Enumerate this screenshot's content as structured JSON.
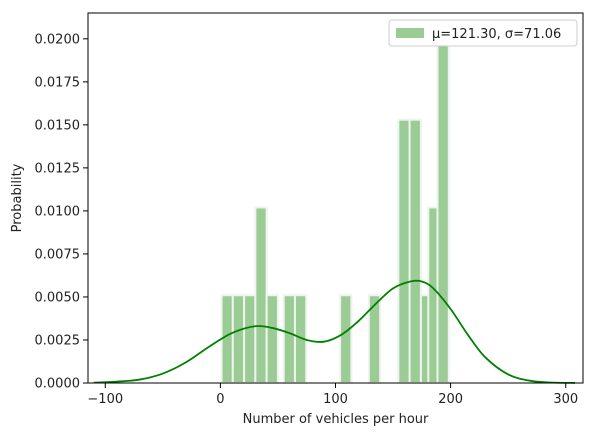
{
  "chart_data": {
    "type": "bar",
    "subtype": "histogram-with-kde",
    "title": "",
    "xlabel": "Number of vehicles per hour",
    "ylabel": "Probability",
    "xlim": [
      -115,
      315
    ],
    "ylim": [
      0,
      0.0215
    ],
    "x_ticks": [
      -100,
      0,
      100,
      200,
      300
    ],
    "y_ticks": [
      0.0,
      0.0025,
      0.005,
      0.0075,
      0.01,
      0.0125,
      0.015,
      0.0175,
      0.02
    ],
    "x_tick_labels": [
      "−100",
      "0",
      "100",
      "200",
      "300"
    ],
    "y_tick_labels": [
      "0.0000",
      "0.0025",
      "0.0050",
      "0.0075",
      "0.0100",
      "0.0125",
      "0.0150",
      "0.0175",
      "0.0200"
    ],
    "bin_width": 9.8,
    "bins": [
      {
        "x": 1.0,
        "value": 0.0051
      },
      {
        "x": 10.8,
        "value": 0.0051
      },
      {
        "x": 20.6,
        "value": 0.0051
      },
      {
        "x": 30.4,
        "value": 0.0102
      },
      {
        "x": 40.2,
        "value": 0.0051
      },
      {
        "x": 55.0,
        "value": 0.0051
      },
      {
        "x": 64.8,
        "value": 0.0051
      },
      {
        "x": 104.0,
        "value": 0.0051
      },
      {
        "x": 129.0,
        "value": 0.0051
      },
      {
        "x": 154.6,
        "value": 0.0153
      },
      {
        "x": 164.4,
        "value": 0.0153
      },
      {
        "x": 174.2,
        "value": 0.0051
      },
      {
        "x": 180.6,
        "value": 0.0102
      },
      {
        "x": 188.6,
        "value": 0.0204
      }
    ],
    "kde": {
      "x": [
        -110,
        -90,
        -70,
        -50,
        -30,
        -10,
        10,
        30,
        45,
        60,
        75,
        90,
        105,
        120,
        135,
        150,
        165,
        175,
        185,
        200,
        215,
        230,
        250,
        270,
        290,
        308
      ],
      "y": [
        2e-05,
        8e-05,
        0.0002,
        0.00055,
        0.0012,
        0.0021,
        0.0029,
        0.0033,
        0.0032,
        0.0029,
        0.0025,
        0.0024,
        0.0028,
        0.0036,
        0.0046,
        0.0055,
        0.0059,
        0.0059,
        0.0055,
        0.0043,
        0.0028,
        0.0015,
        0.0005,
        0.00012,
        2e-05,
        5e-06
      ]
    },
    "legend": {
      "label": "μ=121.30, σ=71.06",
      "placement": "top-right"
    },
    "colors": {
      "bar_fill": "#9ccc95",
      "bar_edge": "#eef4ee",
      "kde_line": "#008000",
      "axis": "#000000"
    },
    "grid": false
  }
}
